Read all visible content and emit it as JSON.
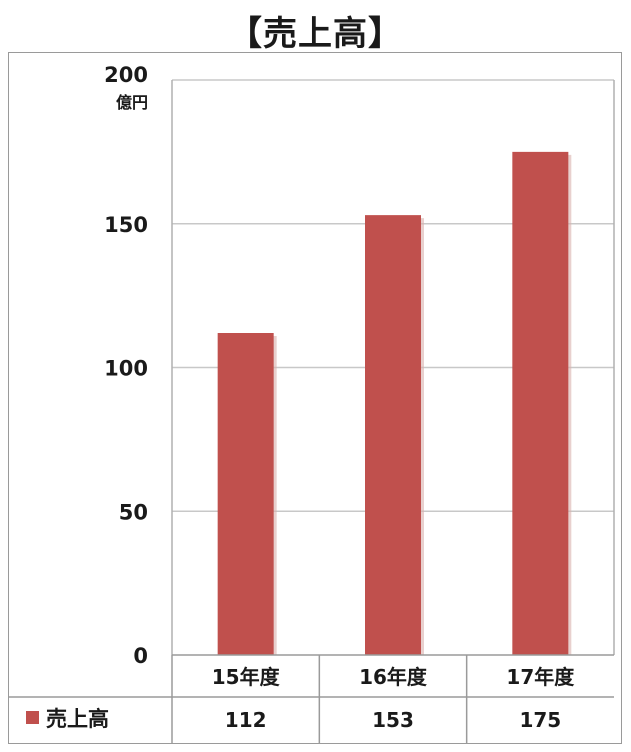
{
  "chart_data": {
    "type": "bar",
    "title": "【売上高】",
    "y_unit": "億円",
    "categories": [
      "15年度",
      "16年度",
      "17年度"
    ],
    "series": [
      {
        "name": "売上高",
        "values": [
          112,
          153,
          175
        ],
        "color": "#c0504d"
      }
    ],
    "yticks": [
      "0",
      "50",
      "100",
      "150",
      "200"
    ],
    "ylim": [
      0,
      200
    ],
    "grid": true,
    "legend": "data-table-left"
  }
}
